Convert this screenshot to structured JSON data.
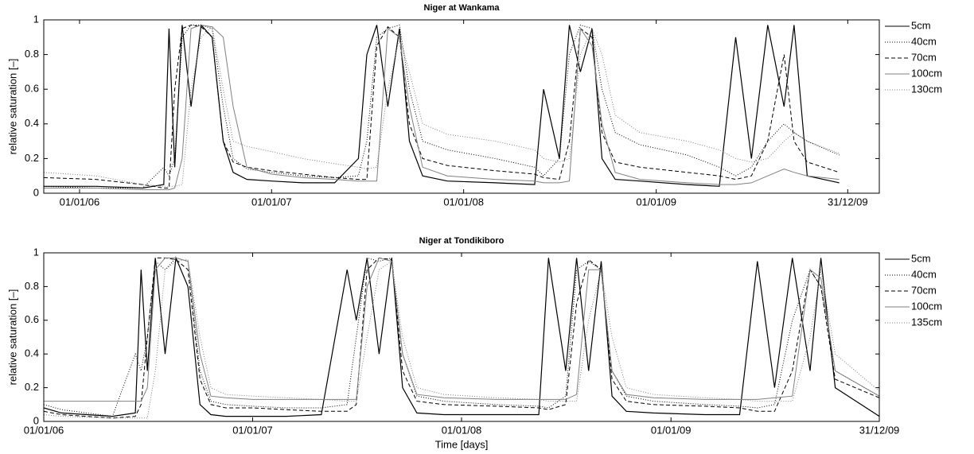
{
  "chart_data": [
    {
      "type": "line",
      "title": "Niger at Wankama",
      "y_label": "relative saturation [–]",
      "xlim": [
        "2005-10-25",
        "2010-03-01"
      ],
      "ylim": [
        0,
        1
      ],
      "yticks": [
        0,
        0.2,
        0.4,
        0.6,
        0.8,
        1
      ],
      "xticks": [
        {
          "value": "2006-01-01",
          "label": "01/01/06"
        },
        {
          "value": "2007-01-01",
          "label": "01/01/07"
        },
        {
          "value": "2008-01-01",
          "label": "01/01/08"
        },
        {
          "value": "2009-01-01",
          "label": "01/01/09"
        },
        {
          "value": "2009-12-31",
          "label": "31/12/09"
        }
      ],
      "grid": false,
      "legend": "outside right",
      "x": [
        "2005-10-25",
        "2006-02-01",
        "2006-05-01",
        "2006-06-10",
        "2006-06-20",
        "2006-07-01",
        "2006-07-15",
        "2006-08-01",
        "2006-08-20",
        "2006-09-10",
        "2006-10-01",
        "2006-10-20",
        "2006-11-15",
        "2007-01-01",
        "2007-03-01",
        "2007-05-01",
        "2007-06-15",
        "2007-07-01",
        "2007-07-20",
        "2007-08-10",
        "2007-09-01",
        "2007-09-20",
        "2007-10-15",
        "2007-12-01",
        "2008-03-01",
        "2008-05-15",
        "2008-06-01",
        "2008-07-01",
        "2008-07-20",
        "2008-08-10",
        "2008-09-01",
        "2008-09-20",
        "2008-10-15",
        "2008-12-01",
        "2009-03-01",
        "2009-05-01",
        "2009-06-01",
        "2009-07-01",
        "2009-08-01",
        "2009-09-01",
        "2009-09-20",
        "2009-10-15",
        "2009-12-15"
      ],
      "series": [
        {
          "name": "5cm",
          "color": "#000000",
          "style": "solid",
          "values": [
            0.04,
            0.04,
            0.03,
            0.05,
            0.95,
            0.15,
            0.97,
            0.5,
            0.97,
            0.9,
            0.3,
            0.12,
            0.08,
            0.07,
            0.06,
            0.06,
            0.2,
            0.8,
            0.97,
            0.5,
            0.95,
            0.3,
            0.1,
            0.07,
            0.06,
            0.05,
            0.6,
            0.2,
            0.97,
            0.7,
            0.95,
            0.2,
            0.08,
            0.07,
            0.05,
            0.04,
            0.9,
            0.2,
            0.97,
            0.5,
            0.97,
            0.1,
            0.06
          ]
        },
        {
          "name": "40cm",
          "color": "#000000",
          "style": "dotted",
          "values": [
            0.04,
            0.03,
            0.03,
            0.15,
            0.1,
            0.2,
            0.9,
            0.97,
            0.97,
            0.95,
            0.5,
            0.2,
            0.14,
            0.12,
            0.1,
            0.09,
            0.1,
            0.3,
            0.9,
            0.95,
            0.97,
            0.6,
            0.3,
            0.25,
            0.2,
            0.15,
            0.1,
            0.2,
            0.8,
            0.97,
            0.95,
            0.6,
            0.35,
            0.28,
            0.22,
            0.15,
            0.1,
            0.15,
            0.3,
            0.4,
            0.35,
            0.3,
            0.22
          ]
        },
        {
          "name": "70cm",
          "color": "#000000",
          "style": "dashed",
          "values": [
            0.09,
            0.08,
            0.05,
            0.03,
            0.03,
            0.6,
            0.95,
            0.97,
            0.96,
            0.9,
            0.3,
            0.18,
            0.15,
            0.13,
            0.11,
            0.09,
            0.08,
            0.08,
            0.85,
            0.96,
            0.9,
            0.4,
            0.2,
            0.16,
            0.13,
            0.11,
            0.09,
            0.08,
            0.3,
            0.95,
            0.9,
            0.35,
            0.18,
            0.15,
            0.12,
            0.1,
            0.08,
            0.1,
            0.3,
            0.8,
            0.3,
            0.18,
            0.12
          ]
        },
        {
          "name": "100cm",
          "color": "#808080",
          "style": "solid",
          "values": [
            0.03,
            0.03,
            0.02,
            0.02,
            0.02,
            0.03,
            0.2,
            0.95,
            0.97,
            0.96,
            0.9,
            0.5,
            0.15,
            0.11,
            0.09,
            0.08,
            0.07,
            0.07,
            0.07,
            0.95,
            0.9,
            0.5,
            0.15,
            0.1,
            0.08,
            0.07,
            0.06,
            0.06,
            0.07,
            0.95,
            0.85,
            0.4,
            0.12,
            0.08,
            0.06,
            0.05,
            0.05,
            0.06,
            0.1,
            0.14,
            0.12,
            0.1,
            0.08
          ]
        },
        {
          "name": "130cm",
          "color": "#808080",
          "style": "dotted",
          "values": [
            0.12,
            0.1,
            0.05,
            0.04,
            0.04,
            0.04,
            0.05,
            0.6,
            0.9,
            0.96,
            0.6,
            0.3,
            0.27,
            0.24,
            0.2,
            0.17,
            0.15,
            0.14,
            0.15,
            0.6,
            0.9,
            0.7,
            0.4,
            0.34,
            0.3,
            0.25,
            0.2,
            0.18,
            0.2,
            0.8,
            0.95,
            0.8,
            0.45,
            0.35,
            0.3,
            0.25,
            0.2,
            0.18,
            0.2,
            0.3,
            0.35,
            0.3,
            0.23
          ]
        }
      ]
    },
    {
      "type": "line",
      "title": "Niger at Tondikiboro",
      "y_label": "relative saturation [–]",
      "x_label": "Time [days]",
      "xlim": [
        "2006-01-01",
        "2009-12-31"
      ],
      "ylim": [
        0,
        1
      ],
      "yticks": [
        0,
        0.2,
        0.4,
        0.6,
        0.8,
        1
      ],
      "xticks": [
        {
          "value": "2006-01-01",
          "label": "01/01/06"
        },
        {
          "value": "2007-01-01",
          "label": "01/01/07"
        },
        {
          "value": "2008-01-01",
          "label": "01/01/08"
        },
        {
          "value": "2009-01-01",
          "label": "01/01/09"
        },
        {
          "value": "2009-12-31",
          "label": "31/12/09"
        }
      ],
      "grid": false,
      "legend": "outside right",
      "x": [
        "2006-01-01",
        "2006-02-01",
        "2006-05-01",
        "2006-06-10",
        "2006-06-20",
        "2006-07-01",
        "2006-07-15",
        "2006-08-01",
        "2006-08-20",
        "2006-09-10",
        "2006-10-01",
        "2006-10-20",
        "2006-11-15",
        "2007-01-01",
        "2007-03-01",
        "2007-05-01",
        "2007-06-15",
        "2007-07-01",
        "2007-07-20",
        "2007-08-10",
        "2007-09-01",
        "2007-09-20",
        "2007-10-15",
        "2007-12-01",
        "2008-03-01",
        "2008-05-15",
        "2008-06-01",
        "2008-07-01",
        "2008-07-20",
        "2008-08-10",
        "2008-09-01",
        "2008-09-20",
        "2008-10-15",
        "2008-12-01",
        "2009-03-01",
        "2009-05-01",
        "2009-06-01",
        "2009-07-01",
        "2009-08-01",
        "2009-09-01",
        "2009-09-20",
        "2009-10-15",
        "2009-12-31"
      ],
      "series": [
        {
          "name": "5cm",
          "color": "#000000",
          "style": "solid",
          "values": [
            0.08,
            0.05,
            0.03,
            0.05,
            0.9,
            0.3,
            0.97,
            0.4,
            0.97,
            0.8,
            0.1,
            0.04,
            0.03,
            0.03,
            0.03,
            0.04,
            0.9,
            0.6,
            0.97,
            0.4,
            0.97,
            0.2,
            0.05,
            0.04,
            0.04,
            0.04,
            0.97,
            0.3,
            0.97,
            0.3,
            0.95,
            0.15,
            0.06,
            0.05,
            0.04,
            0.04,
            0.95,
            0.2,
            0.97,
            0.3,
            0.97,
            0.2,
            0.03
          ]
        },
        {
          "name": "40cm",
          "color": "#000000",
          "style": "dotted",
          "values": [
            0.1,
            0.07,
            0.03,
            0.4,
            0.3,
            0.5,
            0.95,
            0.9,
            0.97,
            0.95,
            0.3,
            0.12,
            0.1,
            0.09,
            0.08,
            0.08,
            0.1,
            0.5,
            0.97,
            0.95,
            0.97,
            0.4,
            0.15,
            0.12,
            0.1,
            0.09,
            0.08,
            0.15,
            0.9,
            0.95,
            0.9,
            0.3,
            0.15,
            0.12,
            0.1,
            0.09,
            0.08,
            0.1,
            0.6,
            0.9,
            0.8,
            0.3,
            0.15
          ]
        },
        {
          "name": "70cm",
          "color": "#000000",
          "style": "dashed",
          "values": [
            0.06,
            0.04,
            0.02,
            0.03,
            0.1,
            0.5,
            0.97,
            0.97,
            0.96,
            0.9,
            0.25,
            0.1,
            0.08,
            0.08,
            0.07,
            0.06,
            0.06,
            0.1,
            0.9,
            0.97,
            0.96,
            0.3,
            0.12,
            0.1,
            0.09,
            0.08,
            0.07,
            0.1,
            0.7,
            0.96,
            0.9,
            0.25,
            0.12,
            0.1,
            0.09,
            0.08,
            0.06,
            0.06,
            0.3,
            0.9,
            0.8,
            0.25,
            0.14
          ]
        },
        {
          "name": "100cm",
          "color": "#808080",
          "style": "solid",
          "values": [
            0.12,
            0.12,
            0.12,
            0.12,
            0.12,
            0.2,
            0.9,
            0.97,
            0.97,
            0.95,
            0.4,
            0.15,
            0.14,
            0.13,
            0.13,
            0.13,
            0.13,
            0.13,
            0.8,
            0.97,
            0.95,
            0.4,
            0.16,
            0.14,
            0.13,
            0.13,
            0.13,
            0.13,
            0.16,
            0.9,
            0.9,
            0.3,
            0.16,
            0.14,
            0.13,
            0.13,
            0.13,
            0.14,
            0.15,
            0.9,
            0.85,
            0.3,
            0.15
          ]
        },
        {
          "name": "135cm",
          "color": "#808080",
          "style": "dotted",
          "values": [
            0.04,
            0.03,
            0.02,
            0.02,
            0.02,
            0.02,
            0.3,
            0.9,
            0.95,
            0.96,
            0.5,
            0.2,
            0.16,
            0.15,
            0.14,
            0.13,
            0.12,
            0.12,
            0.5,
            0.9,
            0.95,
            0.5,
            0.2,
            0.16,
            0.14,
            0.13,
            0.12,
            0.12,
            0.12,
            0.6,
            0.9,
            0.5,
            0.2,
            0.16,
            0.14,
            0.13,
            0.12,
            0.12,
            0.12,
            0.5,
            0.9,
            0.4,
            0.18
          ]
        }
      ]
    }
  ]
}
